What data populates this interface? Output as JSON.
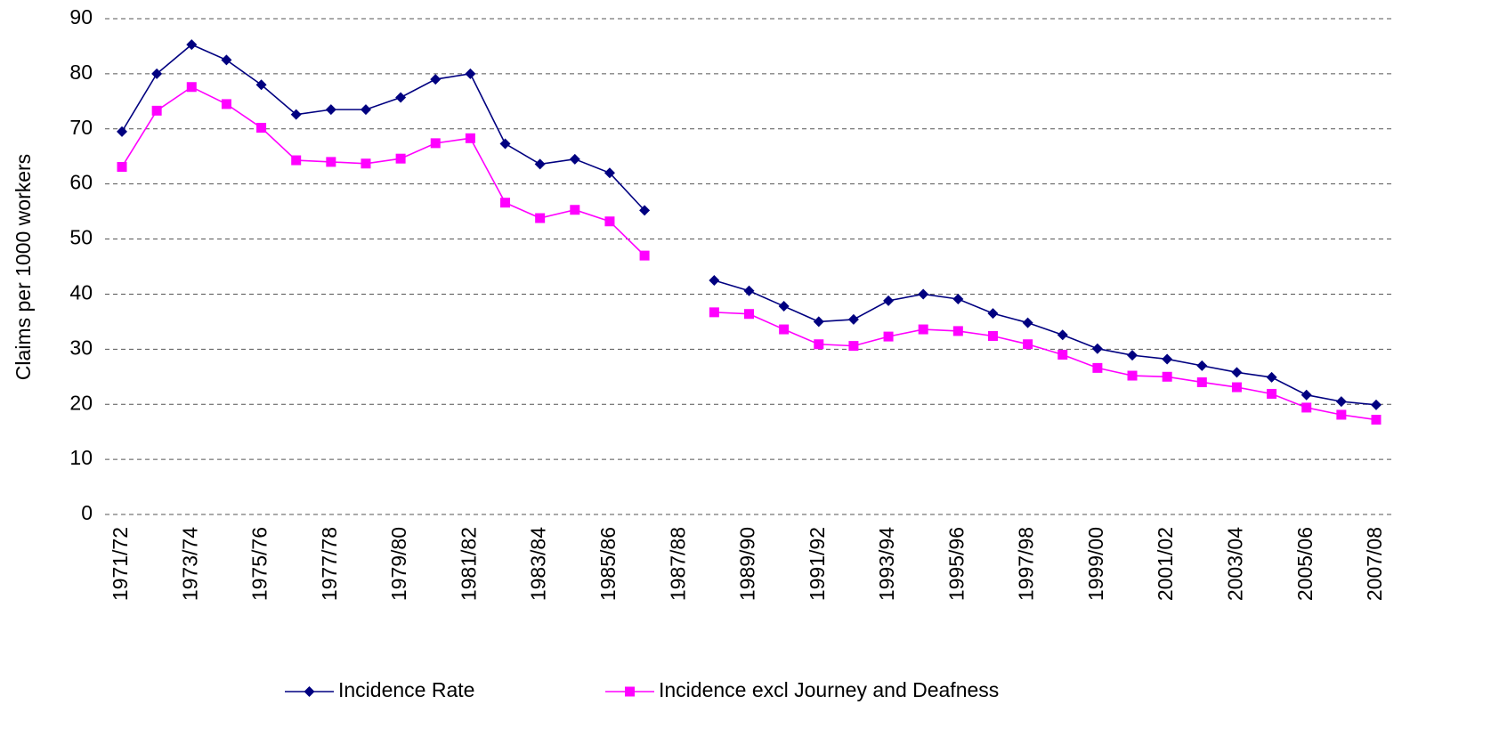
{
  "chart_data": {
    "type": "line",
    "ylabel": "Claims per 1000 workers",
    "categories": [
      "1971/72",
      null,
      "1973/74",
      null,
      "1975/76",
      null,
      "1977/78",
      null,
      "1979/80",
      null,
      "1981/82",
      null,
      "1983/84",
      null,
      "1985/86",
      null,
      "1987/88",
      null,
      "1989/90",
      null,
      "1991/92",
      null,
      "1993/94",
      null,
      "1995/96",
      null,
      "1997/98",
      null,
      "1999/00",
      null,
      "2001/02",
      null,
      "2003/04",
      null,
      "2005/06",
      null,
      "2007/08"
    ],
    "series": [
      {
        "name": "Incidence Rate",
        "color": "#000080",
        "marker": "diamond",
        "values": [
          69.5,
          80,
          85.3,
          82.5,
          78,
          72.6,
          73.5,
          73.5,
          75.7,
          79,
          80,
          67.3,
          63.6,
          64.5,
          62,
          55.2,
          null,
          42.5,
          40.6,
          37.8,
          35,
          35.4,
          38.8,
          40,
          39.1,
          36.5,
          34.8,
          32.6,
          30.1,
          28.9,
          28.2,
          27,
          25.8,
          24.9,
          21.7,
          20.5,
          19.9
        ]
      },
      {
        "name": "Incidence excl Journey and Deafness",
        "color": "#ff00ff",
        "marker": "square",
        "values": [
          63.1,
          73.3,
          77.6,
          74.5,
          70.2,
          64.3,
          64,
          63.7,
          64.6,
          67.4,
          68.3,
          56.6,
          53.8,
          55.3,
          53.2,
          47,
          null,
          36.7,
          36.4,
          33.6,
          30.9,
          30.6,
          32.3,
          33.6,
          33.3,
          32.4,
          30.9,
          29,
          26.6,
          25.2,
          25,
          24,
          23.1,
          21.9,
          19.4,
          18.1,
          17.2
        ]
      }
    ],
    "ylim": [
      0,
      90
    ],
    "yticks": [
      0,
      10,
      20,
      30,
      40,
      50,
      60,
      70,
      80,
      90
    ],
    "grid": true,
    "legend": "bottom"
  }
}
